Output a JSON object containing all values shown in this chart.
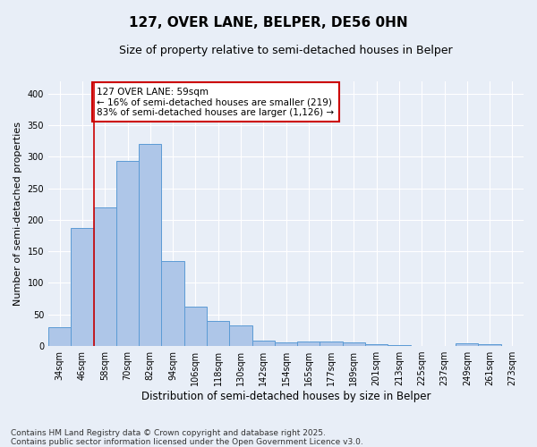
{
  "title": "127, OVER LANE, BELPER, DE56 0HN",
  "subtitle": "Size of property relative to semi-detached houses in Belper",
  "xlabel": "Distribution of semi-detached houses by size in Belper",
  "ylabel": "Number of semi-detached properties",
  "categories": [
    "34sqm",
    "46sqm",
    "58sqm",
    "70sqm",
    "82sqm",
    "94sqm",
    "106sqm",
    "118sqm",
    "130sqm",
    "142sqm",
    "154sqm",
    "165sqm",
    "177sqm",
    "189sqm",
    "201sqm",
    "213sqm",
    "225sqm",
    "237sqm",
    "249sqm",
    "261sqm",
    "273sqm"
  ],
  "values": [
    30,
    187,
    220,
    293,
    320,
    134,
    62,
    40,
    32,
    9,
    6,
    7,
    7,
    6,
    3,
    1,
    0,
    0,
    4,
    3,
    0
  ],
  "bar_color": "#aec6e8",
  "bar_edge_color": "#5b9bd5",
  "red_line_index": 2,
  "annotation_text": "127 OVER LANE: 59sqm\n← 16% of semi-detached houses are smaller (219)\n83% of semi-detached houses are larger (1,126) →",
  "annotation_box_color": "#ffffff",
  "annotation_box_edge": "#cc0000",
  "red_line_color": "#cc0000",
  "ylim": [
    0,
    420
  ],
  "yticks": [
    0,
    50,
    100,
    150,
    200,
    250,
    300,
    350,
    400
  ],
  "background_color": "#e8eef7",
  "grid_color": "#ffffff",
  "footnote": "Contains HM Land Registry data © Crown copyright and database right 2025.\nContains public sector information licensed under the Open Government Licence v3.0.",
  "title_fontsize": 11,
  "subtitle_fontsize": 9,
  "xlabel_fontsize": 8.5,
  "ylabel_fontsize": 8,
  "tick_fontsize": 7,
  "annotation_fontsize": 7.5,
  "footnote_fontsize": 6.5
}
